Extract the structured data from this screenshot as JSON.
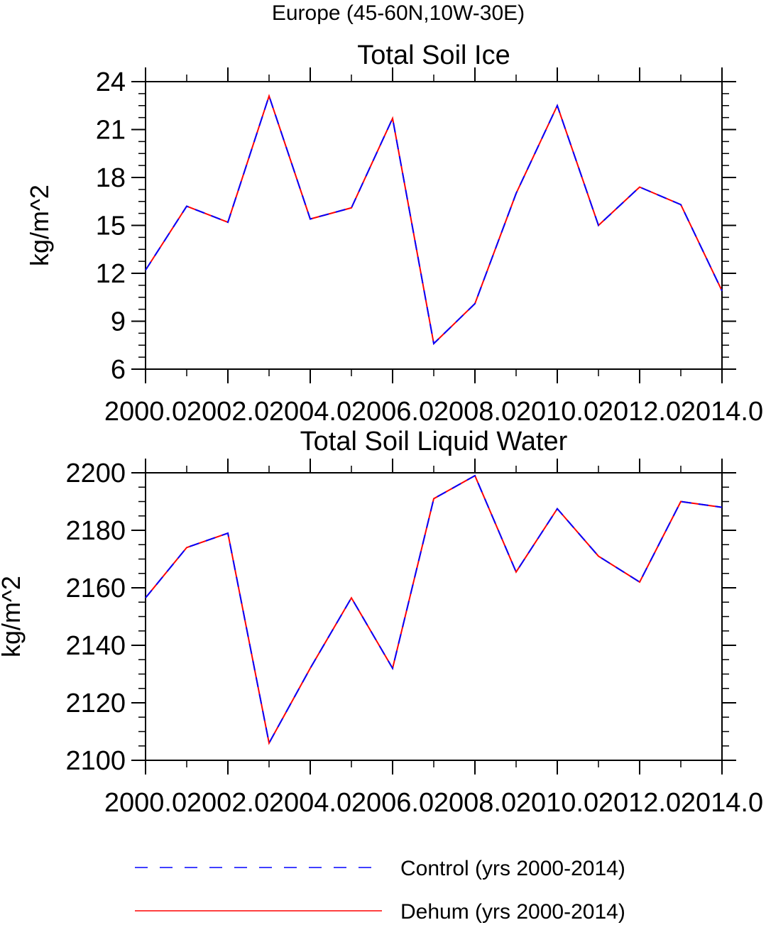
{
  "figure_title": "Europe (45-60N,10W-30E)",
  "chart_data": [
    {
      "type": "line",
      "title": "Total Soil Ice",
      "xlabel": "",
      "ylabel": "kg/m^2",
      "xlim": [
        2000,
        2014
      ],
      "ylim": [
        6,
        24
      ],
      "x_ticks": [
        2000,
        2002,
        2004,
        2006,
        2008,
        2010,
        2012,
        2014
      ],
      "x_tick_labels": [
        "2000.0",
        "2002.0",
        "2004.0",
        "2006.0",
        "2008.0",
        "2010.0",
        "2012.0",
        "2014.0"
      ],
      "y_ticks": [
        6,
        9,
        12,
        15,
        18,
        21,
        24
      ],
      "y_tick_labels": [
        "6",
        "9",
        "12",
        "15",
        "18",
        "21",
        "24"
      ],
      "grid": false,
      "x": [
        2000,
        2001,
        2002,
        2003,
        2004,
        2005,
        2006,
        2007,
        2008,
        2009,
        2010,
        2011,
        2012,
        2013,
        2014
      ],
      "series": [
        {
          "name": "Control (yrs 2000-2014)",
          "color": "#0000ff",
          "dash": "dashed",
          "values": [
            12.2,
            16.2,
            15.2,
            23.1,
            15.4,
            16.1,
            21.7,
            7.6,
            10.1,
            17.0,
            22.5,
            15.0,
            17.4,
            16.3,
            10.9
          ]
        },
        {
          "name": "Dehum (yrs 2000-2014)",
          "color": "#ff0000",
          "dash": "solid",
          "values": [
            12.2,
            16.2,
            15.2,
            23.1,
            15.4,
            16.1,
            21.7,
            7.6,
            10.1,
            17.0,
            22.5,
            15.0,
            17.4,
            16.3,
            10.9
          ]
        }
      ]
    },
    {
      "type": "line",
      "title": "Total Soil Liquid Water",
      "xlabel": "",
      "ylabel": "kg/m^2",
      "xlim": [
        2000,
        2014
      ],
      "ylim": [
        2100,
        2200
      ],
      "x_ticks": [
        2000,
        2002,
        2004,
        2006,
        2008,
        2010,
        2012,
        2014
      ],
      "x_tick_labels": [
        "2000.0",
        "2002.0",
        "2004.0",
        "2006.0",
        "2008.0",
        "2010.0",
        "2012.0",
        "2014.0"
      ],
      "y_ticks": [
        2100,
        2120,
        2140,
        2160,
        2180,
        2200
      ],
      "y_tick_labels": [
        "2100",
        "2120",
        "2140",
        "2160",
        "2180",
        "2200"
      ],
      "grid": false,
      "x": [
        2000,
        2001,
        2002,
        2003,
        2004,
        2005,
        2006,
        2007,
        2008,
        2009,
        2010,
        2011,
        2012,
        2013,
        2014
      ],
      "series": [
        {
          "name": "Control (yrs 2000-2014)",
          "color": "#0000ff",
          "dash": "dashed",
          "values": [
            2156.5,
            2174,
            2179,
            2106,
            2132,
            2156.5,
            2132,
            2191,
            2199,
            2165.5,
            2187.5,
            2171,
            2162,
            2190,
            2188
          ]
        },
        {
          "name": "Dehum (yrs 2000-2014)",
          "color": "#ff0000",
          "dash": "solid",
          "values": [
            2156.5,
            2174,
            2179,
            2106,
            2132,
            2156.5,
            2132,
            2191,
            2199,
            2165.5,
            2187.5,
            2171,
            2162,
            2190,
            2188
          ]
        }
      ]
    }
  ],
  "legend": {
    "placement": "bottom",
    "entries": [
      {
        "label": "Control (yrs 2000-2014)",
        "color": "#0000ff",
        "dash": "dashed"
      },
      {
        "label": "Dehum (yrs 2000-2014)",
        "color": "#ff0000",
        "dash": "solid"
      }
    ]
  }
}
